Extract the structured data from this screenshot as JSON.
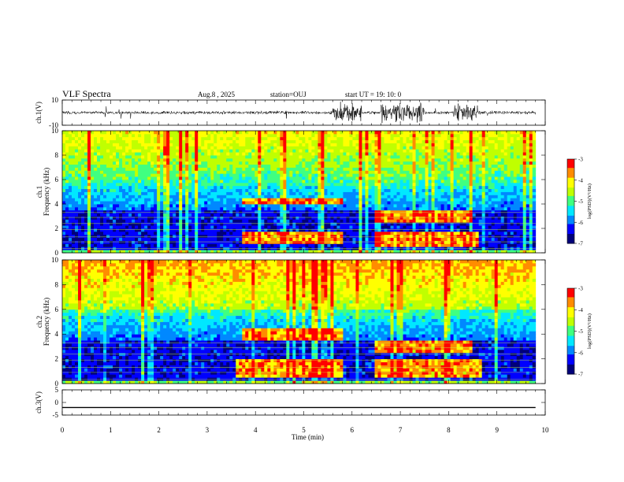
{
  "header": {
    "title": "VLF Spectra",
    "date": "Aug.8 , 2025",
    "station": "station=OUJ",
    "start": "start UT = 19: 10: 0"
  },
  "colors": {
    "colormap": [
      "#00007a",
      "#0000ff",
      "#0088ff",
      "#00e8ff",
      "#40ff80",
      "#c0ff00",
      "#ffff00",
      "#ff8c00",
      "#ff0000",
      "#ffffff"
    ],
    "waveform": "#000000"
  },
  "chart_data": [
    {
      "type": "line",
      "name": "ch1-waveform",
      "ylabel": "ch.1(V)",
      "ylim": [
        -10,
        10
      ],
      "yticks": [
        "10",
        "-10"
      ],
      "xlim": [
        0,
        10
      ],
      "bursts_min": [
        [
          5.6,
          6.2
        ],
        [
          6.6,
          7.5
        ],
        [
          8.1,
          8.6
        ]
      ],
      "typical_amplitude": 1.5,
      "peak_amplitude": 9
    },
    {
      "type": "heatmap",
      "name": "ch1-spectrogram",
      "ylabel": "ch.1 Frequency (kHz)",
      "ylim": [
        0,
        10
      ],
      "yticks": [
        "0",
        "2",
        "4",
        "6",
        "8",
        "10"
      ],
      "xlim": [
        0,
        10
      ],
      "data_end_min": 9.8,
      "colorbar": {
        "label": "log(PSD)(V²/Hz)",
        "range": [
          -7,
          -3
        ],
        "ticks": [
          "-3",
          "-4",
          "-5",
          "-6",
          "-7"
        ]
      },
      "features": [
        {
          "label": "band 0.7-1.8 kHz",
          "t": [
            3.7,
            5.8
          ],
          "f": [
            0.7,
            1.8
          ]
        },
        {
          "label": "band 0.5-1.8 kHz",
          "t": [
            6.5,
            8.6
          ],
          "f": [
            0.5,
            1.8
          ]
        },
        {
          "label": "band ~4 kHz",
          "t": [
            3.7,
            5.8
          ],
          "f": [
            4.0,
            4.6
          ]
        },
        {
          "label": "band ~3 kHz",
          "t": [
            6.5,
            8.5
          ],
          "f": [
            2.6,
            3.4
          ]
        }
      ]
    },
    {
      "type": "heatmap",
      "name": "ch2-spectrogram",
      "ylabel": "ch.2 Frequency (kHz)",
      "ylim": [
        0,
        10
      ],
      "yticks": [
        "0",
        "2",
        "4",
        "6",
        "8",
        "10"
      ],
      "xlim": [
        0,
        10
      ],
      "data_end_min": 9.8,
      "colorbar": {
        "label": "log(PSD)(V²/Hz)",
        "range": [
          -7,
          -3
        ],
        "ticks": [
          "-3",
          "-4",
          "-5",
          "-6",
          "-7"
        ]
      },
      "features": [
        {
          "label": "band 0.5-2 kHz",
          "t": [
            3.6,
            5.8
          ],
          "f": [
            0.5,
            2.0
          ]
        },
        {
          "label": "band 0.5-2 kHz",
          "t": [
            6.5,
            8.7
          ],
          "f": [
            0.5,
            2.0
          ]
        },
        {
          "label": "band ~4 kHz",
          "t": [
            3.7,
            5.8
          ],
          "f": [
            3.6,
            4.4
          ]
        },
        {
          "label": "band ~3 kHz",
          "t": [
            6.5,
            8.5
          ],
          "f": [
            2.6,
            3.4
          ]
        }
      ]
    },
    {
      "type": "line",
      "name": "ch3-trace",
      "ylabel": "ch.3(V)",
      "ylim": [
        -5,
        5
      ],
      "yticks": [
        "5",
        "0",
        "-5"
      ],
      "xlim": [
        0,
        10
      ],
      "value": -2
    }
  ],
  "xaxis": {
    "label": "Time (min)",
    "ticks": [
      "0",
      "1",
      "2",
      "3",
      "4",
      "5",
      "6",
      "7",
      "8",
      "9",
      "10"
    ]
  }
}
